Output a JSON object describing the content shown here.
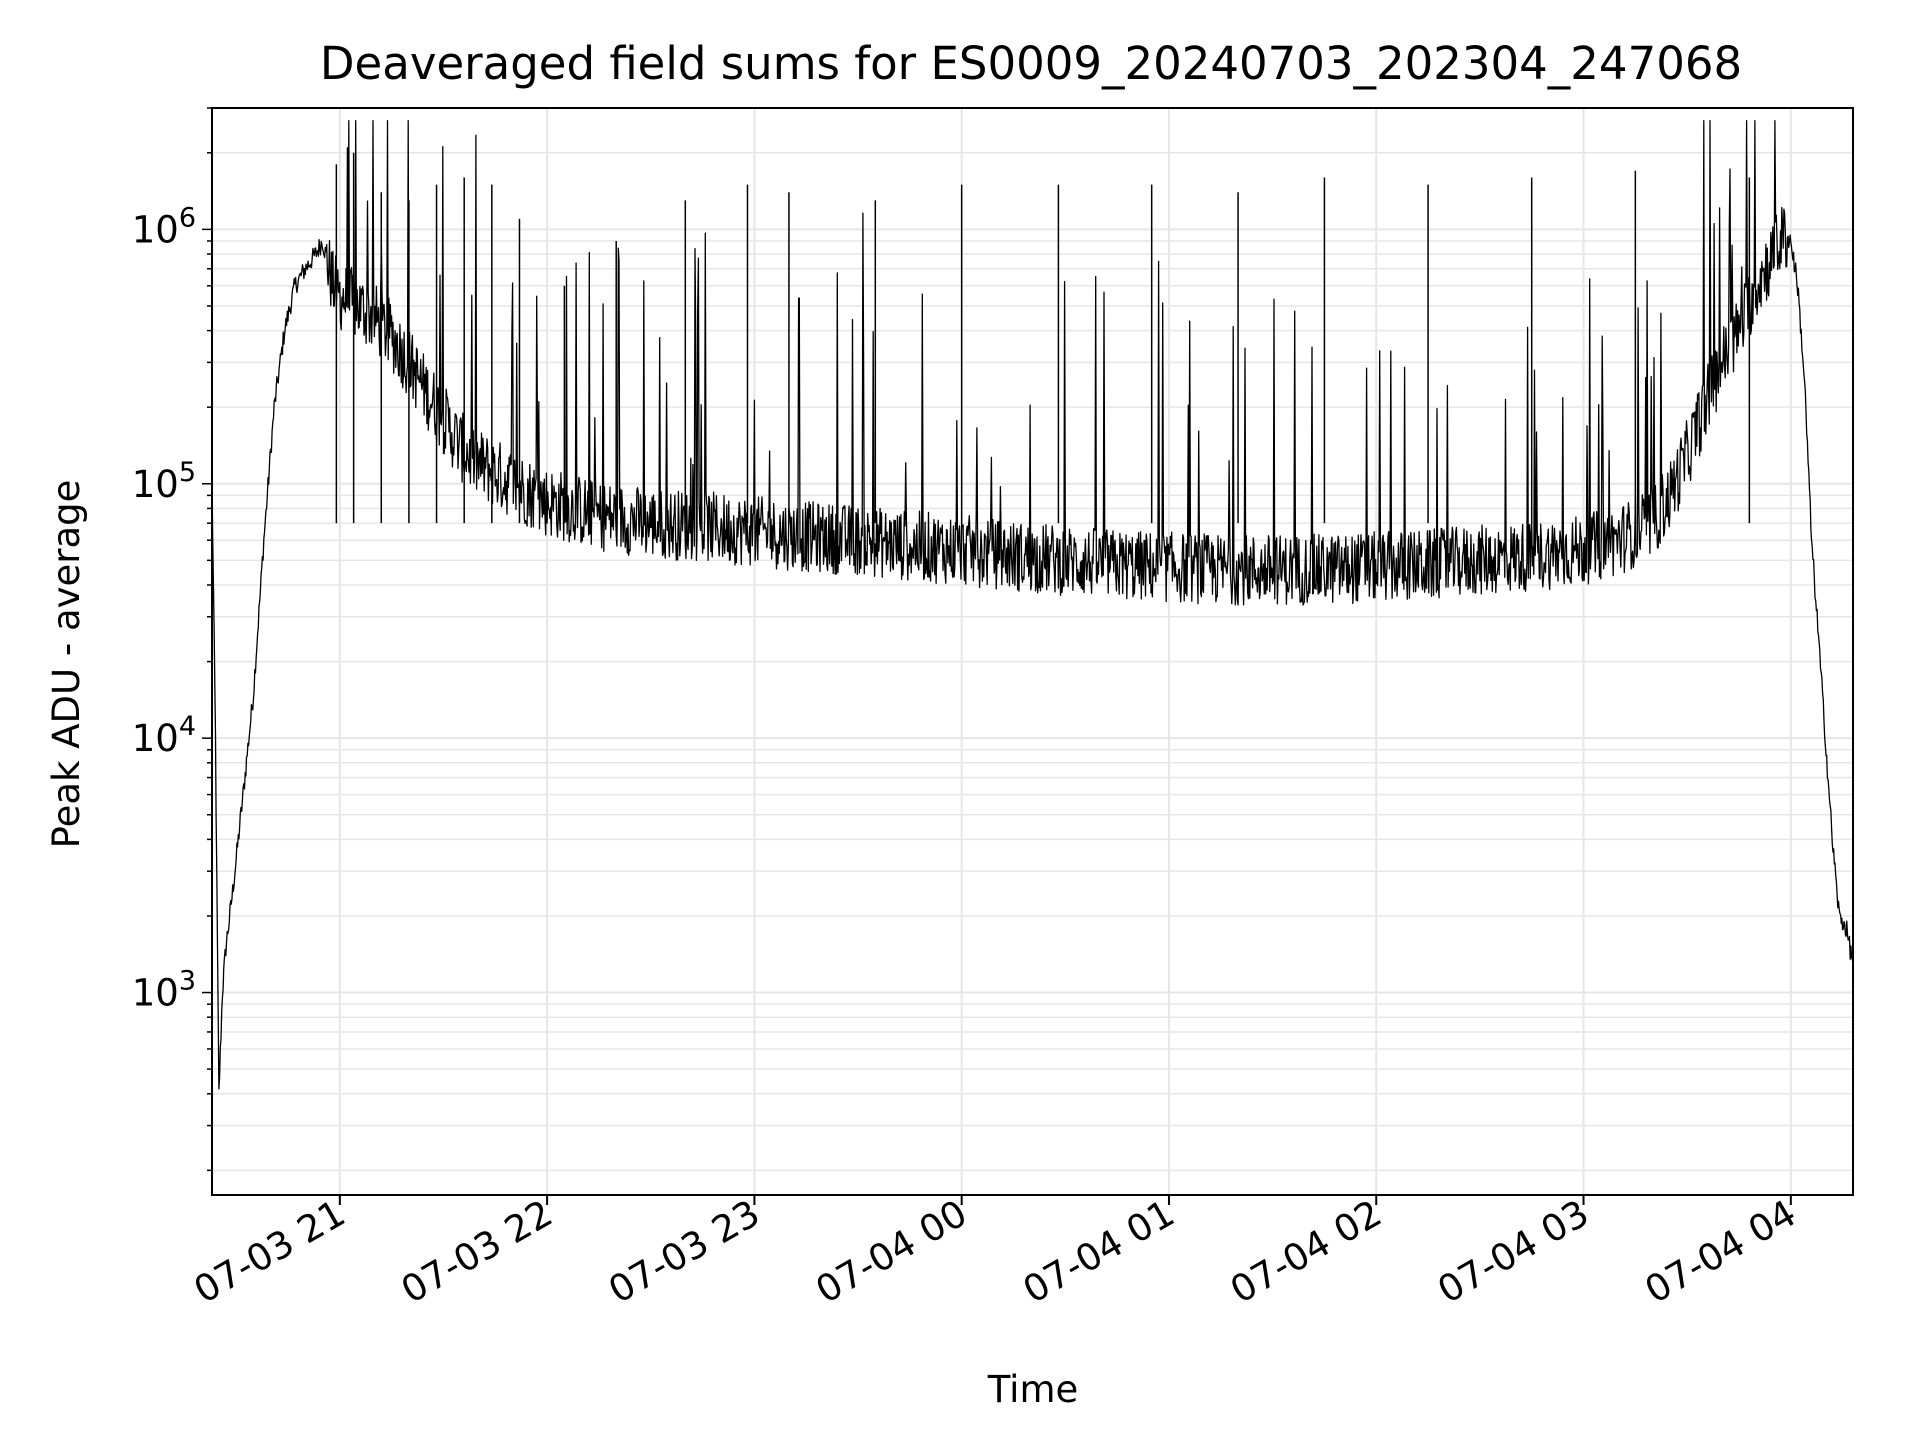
{
  "chart_data": {
    "type": "line",
    "title": "Deaveraged field sums for ES0009_20240703_202304_247068",
    "xlabel": "Time",
    "ylabel": "Peak ADU - average",
    "yscale": "log",
    "ylim": [
      160,
      3000000
    ],
    "xlim": [
      "2024-07-03T20:23:00",
      "2024-07-04T04:18:00"
    ],
    "x_ticks": [
      {
        "t": "2024-07-03T21:00:00",
        "label": "07-03 21"
      },
      {
        "t": "2024-07-03T22:00:00",
        "label": "07-03 22"
      },
      {
        "t": "2024-07-03T23:00:00",
        "label": "07-03 23"
      },
      {
        "t": "2024-07-04T00:00:00",
        "label": "07-04 00"
      },
      {
        "t": "2024-07-04T01:00:00",
        "label": "07-04 01"
      },
      {
        "t": "2024-07-04T02:00:00",
        "label": "07-04 02"
      },
      {
        "t": "2024-07-04T03:00:00",
        "label": "07-04 03"
      },
      {
        "t": "2024-07-04T04:00:00",
        "label": "07-04 04"
      }
    ],
    "y_ticks": [
      {
        "value": 1000,
        "base": "10",
        "exp": "3"
      },
      {
        "value": 10000,
        "base": "10",
        "exp": "4"
      },
      {
        "value": 100000,
        "base": "10",
        "exp": "5"
      },
      {
        "value": 1000000,
        "base": "10",
        "exp": "6"
      }
    ],
    "grid": true,
    "line_color": "#000000",
    "grid_color": "#e6e6e6",
    "series": [
      {
        "x": [
          "2024-07-03T20:23:00",
          "2024-07-03T20:24:00",
          "2024-07-03T20:25:00",
          "2024-07-03T20:26:00",
          "2024-07-03T20:27:00",
          "2024-07-03T20:29:00",
          "2024-07-03T20:32:00",
          "2024-07-03T20:35:00",
          "2024-07-03T20:38:00",
          "2024-07-03T20:41:00",
          "2024-07-03T20:44:00",
          "2024-07-03T20:47:00",
          "2024-07-03T20:50:00",
          "2024-07-03T20:53:00",
          "2024-07-03T20:55:00",
          "2024-07-03T20:58:00",
          "2024-07-03T21:00:00",
          "2024-07-03T21:05:00",
          "2024-07-03T21:10:00",
          "2024-07-03T21:15:00",
          "2024-07-03T21:20:00",
          "2024-07-03T21:25:00",
          "2024-07-03T21:30:00",
          "2024-07-03T21:35:00",
          "2024-07-03T21:40:00",
          "2024-07-03T21:45:00",
          "2024-07-03T21:50:00",
          "2024-07-03T22:00:00",
          "2024-07-03T22:15:00",
          "2024-07-03T22:30:00",
          "2024-07-03T22:45:00",
          "2024-07-03T23:00:00",
          "2024-07-03T23:15:00",
          "2024-07-03T23:30:00",
          "2024-07-03T23:45:00",
          "2024-07-04T00:00:00",
          "2024-07-04T00:15:00",
          "2024-07-04T00:30:00",
          "2024-07-04T00:45:00",
          "2024-07-04T01:00:00",
          "2024-07-04T01:15:00",
          "2024-07-04T01:30:00",
          "2024-07-04T01:45:00",
          "2024-07-04T02:00:00",
          "2024-07-04T02:15:00",
          "2024-07-04T02:30:00",
          "2024-07-04T02:45:00",
          "2024-07-04T03:00:00",
          "2024-07-04T03:10:00",
          "2024-07-04T03:20:00",
          "2024-07-04T03:25:00",
          "2024-07-04T03:30:00",
          "2024-07-04T03:35:00",
          "2024-07-04T03:40:00",
          "2024-07-04T03:45:00",
          "2024-07-04T03:50:00",
          "2024-07-04T03:55:00",
          "2024-07-04T03:58:00",
          "2024-07-04T04:00:00",
          "2024-07-04T04:02:00",
          "2024-07-04T04:04:00",
          "2024-07-04T04:06:00",
          "2024-07-04T04:08:00",
          "2024-07-04T04:10:00",
          "2024-07-04T04:12:00",
          "2024-07-04T04:14:00",
          "2024-07-04T04:16:00",
          "2024-07-04T04:18:00"
        ],
        "y": [
          100000,
          10000,
          400,
          1000,
          1500,
          2500,
          6000,
          15000,
          60000,
          200000,
          400000,
          600000,
          700000,
          800000,
          900000,
          600000,
          550000,
          500000,
          450000,
          380000,
          300000,
          230000,
          180000,
          140000,
          120000,
          110000,
          100000,
          85000,
          75000,
          70000,
          68000,
          65000,
          62000,
          60000,
          57000,
          55000,
          52000,
          50000,
          48000,
          47000,
          46000,
          46000,
          46000,
          47000,
          48000,
          50000,
          52000,
          55000,
          60000,
          70000,
          90000,
          130000,
          200000,
          300000,
          400000,
          600000,
          800000,
          950000,
          900000,
          600000,
          250000,
          60000,
          25000,
          10000,
          4000,
          2000,
          1800,
          1300
        ]
      }
    ],
    "spikes": [
      {
        "t": "2024-07-03T20:59:00",
        "y": 1800000
      },
      {
        "t": "2024-07-03T21:04:00",
        "y": 2000000
      },
      {
        "t": "2024-07-03T21:12:00",
        "y": 1400000
      },
      {
        "t": "2024-07-03T21:20:00",
        "y": 1300000
      },
      {
        "t": "2024-07-03T21:28:00",
        "y": 1500000
      },
      {
        "t": "2024-07-03T21:36:00",
        "y": 1600000
      },
      {
        "t": "2024-07-03T21:44:00",
        "y": 1500000
      },
      {
        "t": "2024-07-03T21:52:00",
        "y": 1100000
      },
      {
        "t": "2024-07-03T22:05:00",
        "y": 600000
      },
      {
        "t": "2024-07-03T22:20:00",
        "y": 900000
      },
      {
        "t": "2024-07-03T22:40:00",
        "y": 1300000
      },
      {
        "t": "2024-07-03T22:58:00",
        "y": 1500000
      },
      {
        "t": "2024-07-03T23:10:00",
        "y": 1400000
      },
      {
        "t": "2024-07-03T23:35:00",
        "y": 1300000
      },
      {
        "t": "2024-07-04T00:00:00",
        "y": 1500000
      },
      {
        "t": "2024-07-04T00:28:00",
        "y": 1500000
      },
      {
        "t": "2024-07-04T00:55:00",
        "y": 1500000
      },
      {
        "t": "2024-07-04T01:20:00",
        "y": 1400000
      },
      {
        "t": "2024-07-04T01:45:00",
        "y": 1600000
      },
      {
        "t": "2024-07-04T02:15:00",
        "y": 1500000
      },
      {
        "t": "2024-07-04T02:45:00",
        "y": 1600000
      },
      {
        "t": "2024-07-04T03:15:00",
        "y": 1700000
      },
      {
        "t": "2024-07-04T03:48:00",
        "y": 1600000
      }
    ]
  }
}
